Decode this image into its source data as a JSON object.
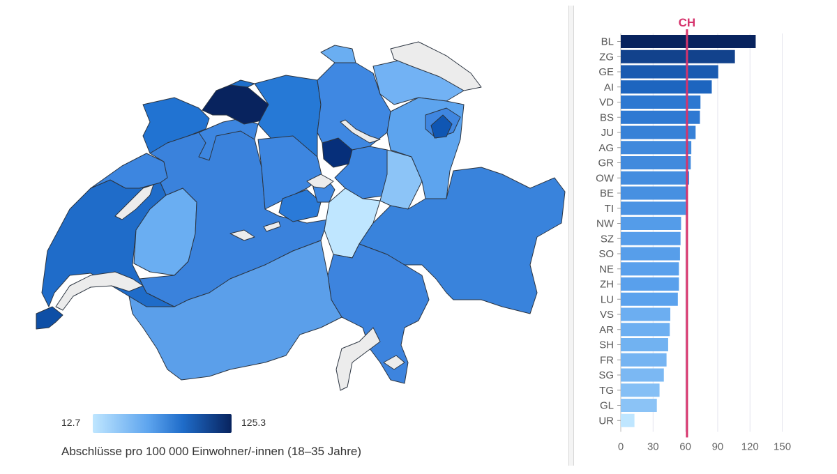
{
  "legend": {
    "min_label": "12.7",
    "max_label": "125.3",
    "caption": "Abschlüsse pro 100 000 Einwohner/-innen (18–35 Jahre)",
    "color_low": "#bfe6ff",
    "color_high": "#08235e"
  },
  "colors": {
    "reference_line": "#d6336c",
    "grid": "#e4e4ee",
    "lake": "#ececec",
    "border": "#2b3440"
  },
  "chart_data": {
    "type": "bar",
    "orientation": "horizontal",
    "categories": [
      "BL",
      "ZG",
      "GE",
      "AI",
      "VD",
      "BS",
      "JU",
      "AG",
      "GR",
      "OW",
      "BE",
      "TI",
      "NW",
      "SZ",
      "SO",
      "NE",
      "ZH",
      "LU",
      "VS",
      "AR",
      "SH",
      "FR",
      "SG",
      "TG",
      "GL",
      "UR"
    ],
    "values": [
      125.3,
      106,
      90.5,
      84.5,
      74,
      73.5,
      69.5,
      65.5,
      65,
      63.5,
      62,
      60.5,
      56,
      55.5,
      55,
      54,
      54,
      53,
      46,
      45.5,
      44,
      42.5,
      40,
      36,
      33.5,
      12.7
    ],
    "xlim": [
      0,
      160
    ],
    "xticks": [
      0,
      30,
      60,
      90,
      120,
      150
    ],
    "reference": {
      "label": "CH",
      "value": 61.5
    },
    "grid": true
  }
}
